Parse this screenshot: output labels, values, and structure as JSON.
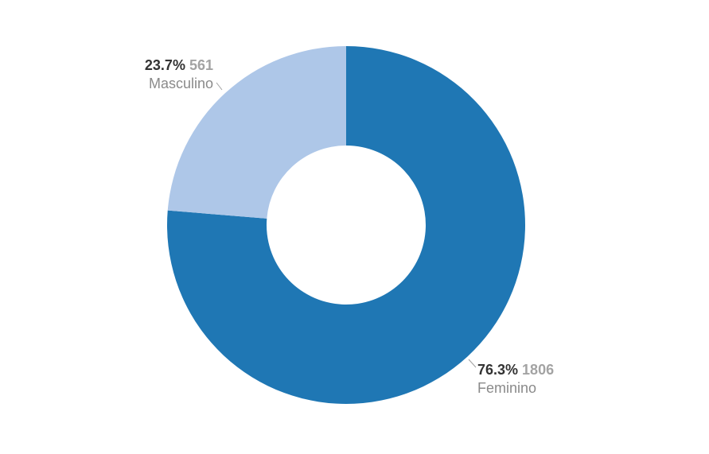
{
  "chart_data": {
    "type": "pie",
    "donut": true,
    "slices": [
      {
        "label": "Feminino",
        "value": 1806,
        "percent": "76.3%",
        "color": "#1f77b4"
      },
      {
        "label": "Masculino",
        "value": 561,
        "percent": "23.7%",
        "color": "#aec7e8"
      }
    ]
  }
}
